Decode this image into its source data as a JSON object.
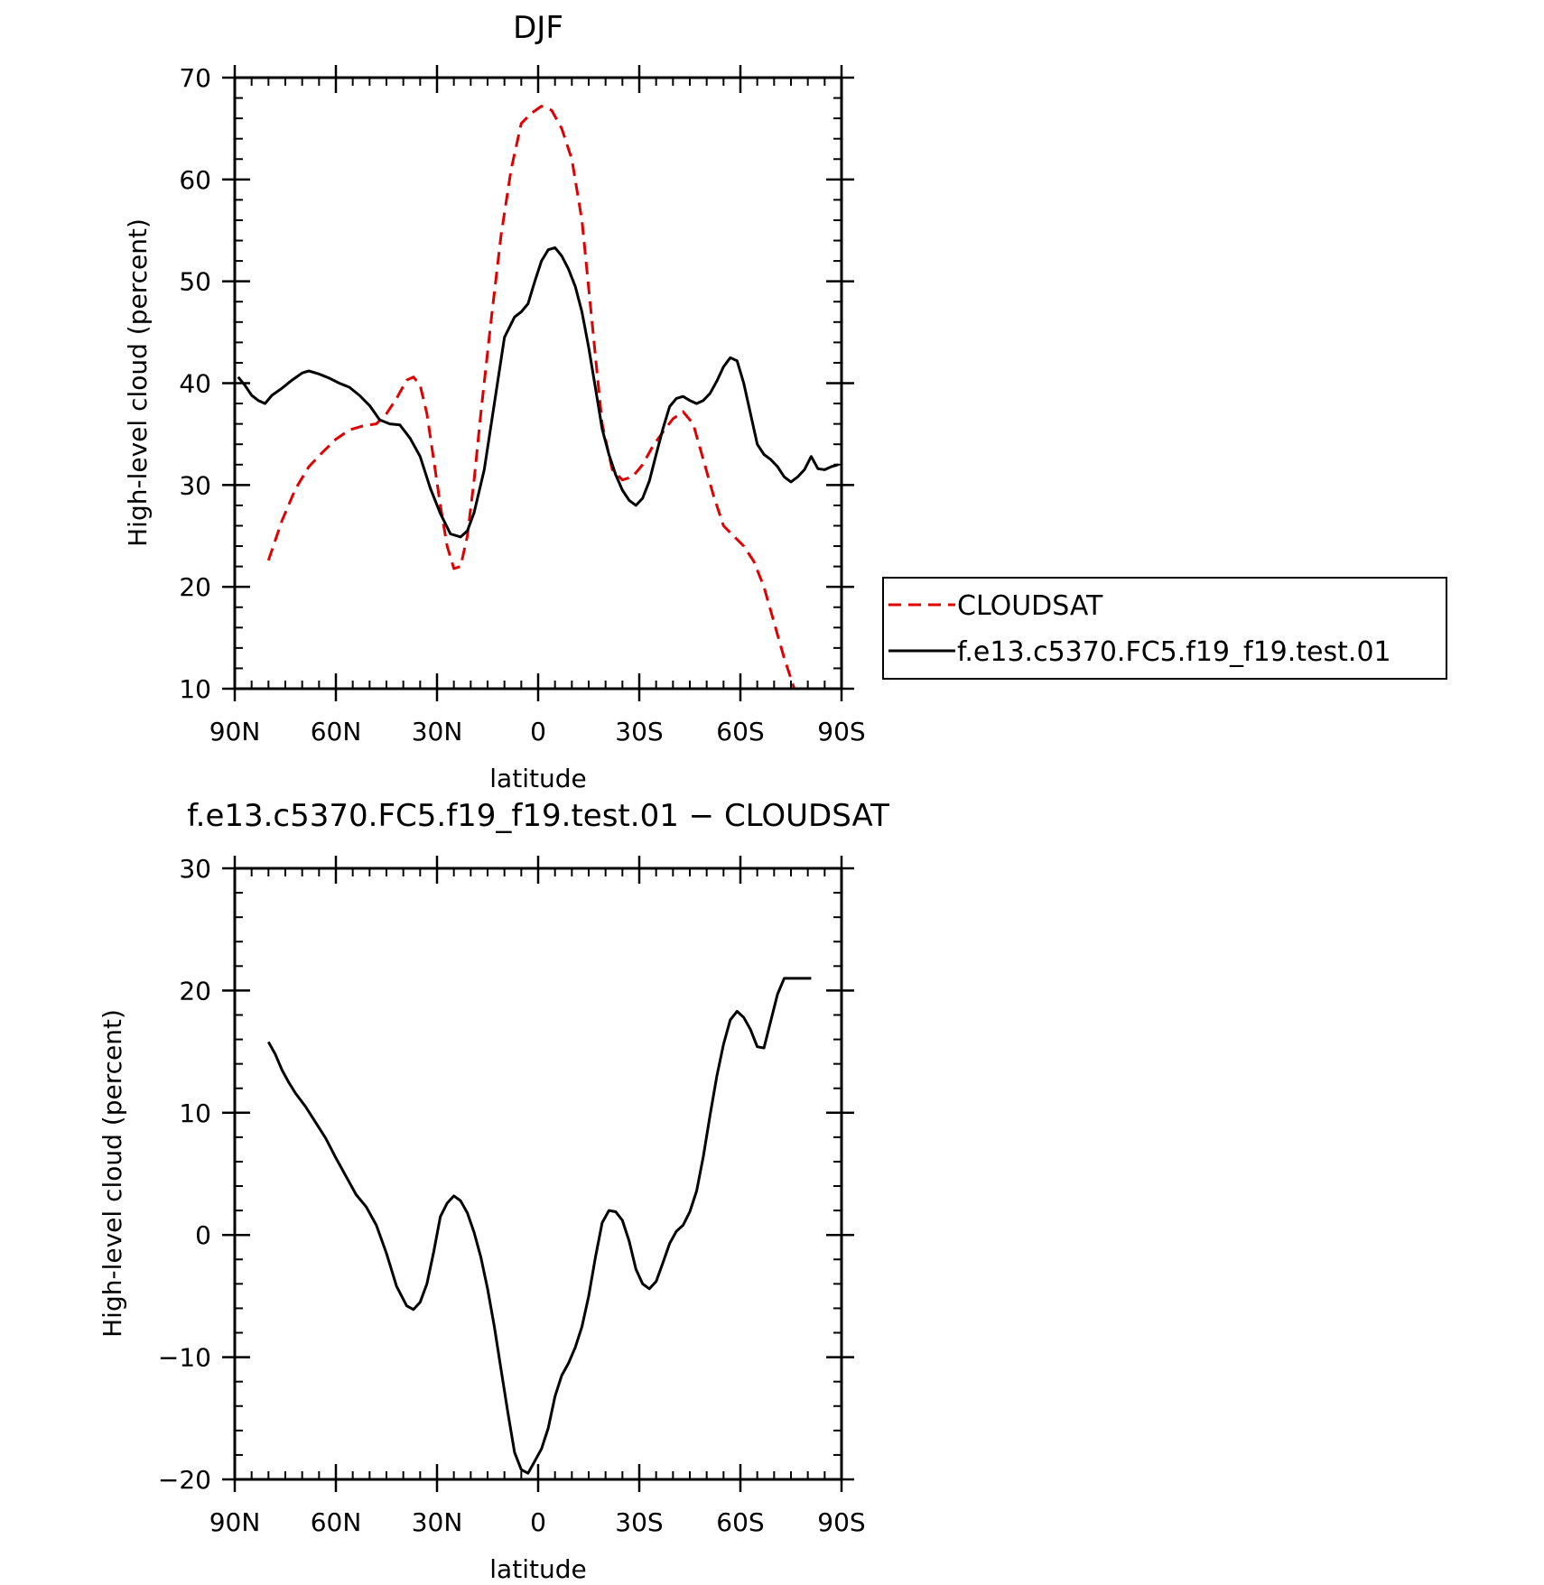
{
  "chart_data": [
    {
      "type": "line",
      "title": "DJF",
      "xlabel": "latitude",
      "ylabel": "High-level cloud (percent)",
      "xlim": [
        90,
        -90
      ],
      "ylim": [
        10,
        70
      ],
      "xticks": [
        90,
        60,
        30,
        0,
        -30,
        -60,
        -90
      ],
      "xtick_labels": [
        "90N",
        "60N",
        "30N",
        "0",
        "30S",
        "60S",
        "90S"
      ],
      "yticks": [
        10,
        20,
        30,
        40,
        50,
        60,
        70
      ],
      "ytick_labels": [
        "10",
        "20",
        "30",
        "40",
        "50",
        "60",
        "70"
      ],
      "grid": false,
      "legend": {
        "placement": "right",
        "entries": [
          "CLOUDSAT",
          "f.e13.c5370.FC5.f19_f19.test.01"
        ]
      },
      "series": [
        {
          "name": "CLOUDSAT",
          "color": "#e00000",
          "dash": "dashed",
          "x": [
            80,
            76,
            72,
            68,
            64,
            60,
            56,
            52,
            48,
            45,
            42,
            39,
            37,
            35,
            33,
            31,
            29,
            27,
            25,
            23,
            21,
            19,
            17,
            14,
            11,
            8,
            5,
            2,
            -1,
            -4,
            -7,
            -10,
            -13,
            -16,
            -19,
            -22,
            -25,
            -28,
            -31,
            -34,
            -37,
            -40,
            -43,
            -46,
            -49,
            -52,
            -55,
            -58,
            -61,
            -64,
            -67,
            -70,
            -73,
            -76,
            -79,
            -81
          ],
          "y": [
            22.6,
            26.5,
            29.6,
            31.8,
            33.2,
            34.5,
            35.4,
            35.8,
            36.0,
            37.0,
            38.5,
            40.3,
            40.6,
            39.8,
            37.0,
            32.5,
            28.0,
            24.0,
            21.8,
            22.0,
            25.0,
            30.5,
            37.0,
            46.0,
            54.5,
            61.0,
            65.5,
            66.5,
            67.2,
            66.8,
            65.0,
            62.0,
            56.0,
            46.0,
            36.0,
            31.5,
            30.5,
            30.8,
            32.0,
            33.8,
            35.2,
            36.5,
            37.2,
            36.0,
            32.5,
            29.0,
            26.0,
            25.0,
            24.0,
            22.5,
            20.0,
            16.5,
            13.0,
            10.0,
            8.0,
            7.0
          ]
        },
        {
          "name": "f.e13.c5370.FC5.f19_f19.test.01",
          "color": "#000000",
          "dash": "solid",
          "x": [
            89,
            87,
            85,
            83,
            81,
            79,
            76,
            73,
            70,
            68,
            65,
            62,
            59,
            56,
            53,
            50,
            47,
            44,
            41,
            38,
            35,
            32,
            29,
            26,
            23,
            21,
            19,
            16,
            13,
            10,
            7,
            5,
            3,
            1,
            -1,
            -3,
            -5,
            -7,
            -9,
            -11,
            -13,
            -15,
            -17,
            -19,
            -21,
            -23,
            -25,
            -27,
            -29,
            -31,
            -33,
            -35,
            -37,
            -39,
            -41,
            -43,
            -45,
            -47,
            -49,
            -51,
            -53,
            -55,
            -57,
            -59,
            -61,
            -63,
            -65,
            -67,
            -69,
            -71,
            -73,
            -75,
            -77,
            -79,
            -81,
            -83,
            -85,
            -87,
            -89
          ],
          "y": [
            40.6,
            39.8,
            38.8,
            38.3,
            38.0,
            38.8,
            39.5,
            40.3,
            41.0,
            41.2,
            40.9,
            40.5,
            40.0,
            39.6,
            38.8,
            37.8,
            36.4,
            36.0,
            35.9,
            34.6,
            32.8,
            29.7,
            27.2,
            25.2,
            24.9,
            25.5,
            27.3,
            31.5,
            38.0,
            44.5,
            46.5,
            47.0,
            47.8,
            50.0,
            52.0,
            53.1,
            53.3,
            52.5,
            51.2,
            49.5,
            47.0,
            43.5,
            39.5,
            35.5,
            33.0,
            31.0,
            29.5,
            28.5,
            28.0,
            28.7,
            30.4,
            33.0,
            35.5,
            37.7,
            38.5,
            38.7,
            38.3,
            38.0,
            38.3,
            39.0,
            40.2,
            41.6,
            42.5,
            42.2,
            40.0,
            37.0,
            34.0,
            33.0,
            32.5,
            31.8,
            30.8,
            30.3,
            30.8,
            31.5,
            32.8,
            31.6,
            31.5,
            31.8,
            32.0
          ]
        }
      ]
    },
    {
      "type": "line",
      "title": "f.e13.c5370.FC5.f19_f19.test.01 − CLOUDSAT",
      "xlabel": "latitude",
      "ylabel": "High-level cloud (percent)",
      "xlim": [
        90,
        -90
      ],
      "ylim": [
        -20,
        30
      ],
      "xticks": [
        90,
        60,
        30,
        0,
        -30,
        -60,
        -90
      ],
      "xtick_labels": [
        "90N",
        "60N",
        "30N",
        "0",
        "30S",
        "60S",
        "90S"
      ],
      "yticks": [
        -20,
        -10,
        0,
        10,
        20,
        30
      ],
      "ytick_labels": [
        "−20",
        "−10",
        "0",
        "10",
        "20",
        "30"
      ],
      "grid": false,
      "series": [
        {
          "color": "#000000",
          "dash": "solid",
          "x": [
            80,
            78,
            76,
            74,
            72,
            69,
            66,
            63,
            60,
            57,
            54,
            51,
            48,
            45,
            42,
            39,
            37,
            35,
            33,
            31,
            29,
            27,
            25,
            23,
            21,
            19,
            17,
            15,
            13,
            11,
            9,
            7,
            5,
            3,
            1,
            -1,
            -3,
            -5,
            -7,
            -9,
            -11,
            -13,
            -15,
            -17,
            -19,
            -21,
            -23,
            -25,
            -27,
            -29,
            -31,
            -33,
            -35,
            -37,
            -39,
            -41,
            -43,
            -45,
            -47,
            -49,
            -51,
            -53,
            -55,
            -57,
            -59,
            -61,
            -63,
            -65,
            -67,
            -69,
            -71,
            -73,
            -75,
            -77,
            -79,
            -81
          ],
          "y": [
            15.8,
            14.8,
            13.5,
            12.5,
            11.6,
            10.5,
            9.2,
            7.9,
            6.3,
            4.8,
            3.3,
            2.3,
            0.8,
            -1.5,
            -4.2,
            -5.8,
            -6.1,
            -5.5,
            -4.0,
            -1.4,
            1.5,
            2.6,
            3.2,
            2.8,
            1.8,
            0.2,
            -1.8,
            -4.4,
            -7.5,
            -11.0,
            -14.5,
            -17.8,
            -19.2,
            -19.5,
            -18.5,
            -17.5,
            -15.8,
            -13.2,
            -11.5,
            -10.5,
            -9.2,
            -7.5,
            -5.0,
            -1.8,
            1.0,
            2.0,
            1.9,
            1.2,
            -0.5,
            -2.8,
            -4.0,
            -4.4,
            -3.8,
            -2.3,
            -0.7,
            0.3,
            0.8,
            1.9,
            3.6,
            6.4,
            9.8,
            13.0,
            15.6,
            17.6,
            18.3,
            17.8,
            16.8,
            15.4,
            15.3,
            17.5,
            19.7,
            21.0,
            21.0,
            21.0,
            21.0,
            21.0
          ]
        }
      ]
    }
  ]
}
